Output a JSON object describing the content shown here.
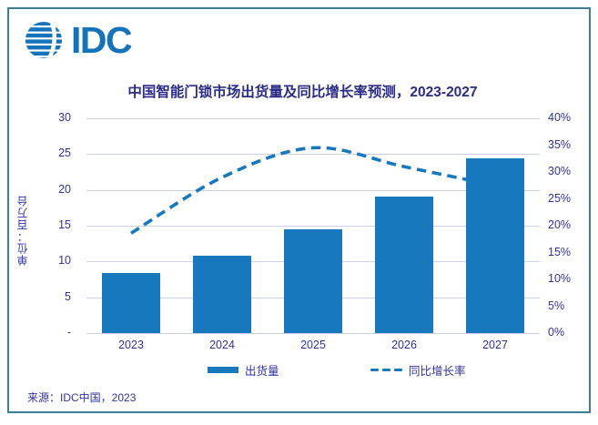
{
  "logo": {
    "text": "IDC",
    "icon": "striped-globe"
  },
  "title": "中国智能门锁市场出货量及同比增长率预测，2023-2027",
  "source": "来源：IDC中国，2023",
  "legend": {
    "bars_label": "出货量",
    "line_label": "同比增长率"
  },
  "colors": {
    "bar": "#1878BE",
    "line": "#1878BE",
    "logo_blue": "#1573B9",
    "text_navy": "#30329A",
    "title_navy": "#2A2C86",
    "grid": "#CBCFE9",
    "frame_teal": "#3C7F92"
  },
  "chart_data": {
    "type": "bar+line (dual axis)",
    "title": "中国智能门锁市场出货量及同比增长率预测，2023-2027",
    "categories": [
      "2023",
      "2024",
      "2025",
      "2026",
      "2027"
    ],
    "series": [
      {
        "name": "出货量",
        "type": "bar",
        "axis": "left",
        "unit": "百万台",
        "values": [
          8.4,
          10.8,
          14.5,
          19.1,
          24.4
        ]
      },
      {
        "name": "同比增长率",
        "type": "line",
        "style": "dashed",
        "axis": "right",
        "unit": "%",
        "values": [
          18.6,
          29.0,
          34.5,
          31.0,
          27.5
        ]
      }
    ],
    "left_axis": {
      "label": "单位：百万台",
      "min": 0,
      "max": 30,
      "step": 5,
      "tick_labels_bottom_to_top": [
        "-",
        "5",
        "10",
        "15",
        "20",
        "25",
        "30"
      ]
    },
    "right_axis": {
      "min": 0,
      "max": 40,
      "step": 5,
      "tick_labels_bottom_to_top": [
        "0%",
        "5%",
        "10%",
        "15%",
        "20%",
        "25%",
        "30%",
        "35%",
        "40%"
      ]
    },
    "grid": "horizontal only",
    "legend_position": "bottom",
    "note": "2027 growth-line endpoint is partially hidden behind the 2027 bar"
  }
}
